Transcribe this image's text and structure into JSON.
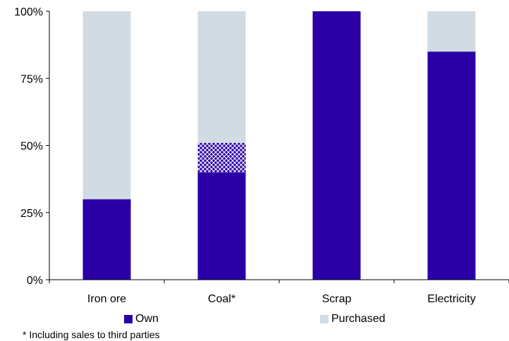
{
  "chart_data": {
    "type": "bar",
    "stacked": true,
    "percent": true,
    "categories": [
      "Iron ore",
      "Coal*",
      "Scrap",
      "Electricity"
    ],
    "series": [
      {
        "name": "Own",
        "values": [
          30,
          40,
          100,
          85
        ],
        "color": "#2a00a6"
      },
      {
        "name": "Own (incl. sales to third parties)",
        "values": [
          0,
          11,
          0,
          0
        ],
        "color": "#2a00a6",
        "pattern": "crosshatch"
      },
      {
        "name": "Purchased",
        "values": [
          70,
          49,
          0,
          15
        ],
        "color": "#d0dbe4"
      }
    ],
    "ylim": [
      0,
      100
    ],
    "yticks": [
      "0%",
      "25%",
      "50%",
      "75%",
      "100%"
    ],
    "ytick_values": [
      0,
      25,
      50,
      75,
      100
    ],
    "legend": {
      "placement": "bottom",
      "items": [
        {
          "label": "Own",
          "color": "#2a00a6"
        },
        {
          "label": "Purchased",
          "color": "#d0dbe4"
        }
      ]
    },
    "footnote": "* Including sales to third parties",
    "grid": false
  }
}
